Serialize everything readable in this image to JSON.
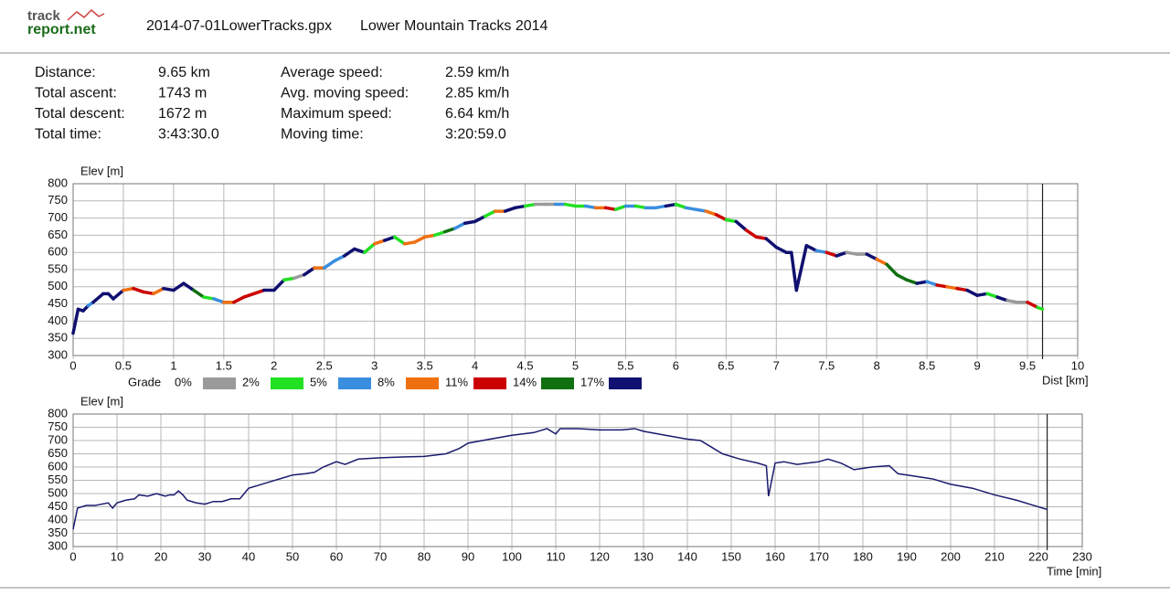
{
  "header": {
    "logo": [
      "track",
      "report.net"
    ],
    "file": "2014-07-01LowerTracks.gpx",
    "title": "Lower Mountain Tracks 2014"
  },
  "stats": [
    {
      "label": "Distance:",
      "value": "9.65 km"
    },
    {
      "label": "Total ascent:",
      "value": "1743 m"
    },
    {
      "label": "Total descent:",
      "value": "1672 m"
    },
    {
      "label": "Total time:",
      "value": "3:43:30.0"
    },
    {
      "label": "Average speed:",
      "value": "2.59 km/h"
    },
    {
      "label": "Avg. moving speed:",
      "value": "2.85 km/h"
    },
    {
      "label": "Maximum speed:",
      "value": "6.64 km/h"
    },
    {
      "label": "Moving time:",
      "value": "3:20:59.0"
    }
  ],
  "chart_data": [
    {
      "type": "line",
      "y_label": "Elev [m]",
      "x_label": "Dist [km]",
      "xlim": [
        0,
        10
      ],
      "xticks": [
        0,
        0.5,
        1,
        1.5,
        2,
        2.5,
        3,
        3.5,
        4,
        4.5,
        5,
        5.5,
        6,
        6.5,
        7,
        7.5,
        8,
        8.5,
        9,
        9.5,
        10
      ],
      "ylim": [
        300,
        800
      ],
      "yticks": [
        300,
        350,
        400,
        450,
        500,
        550,
        600,
        650,
        700,
        750,
        800
      ],
      "grid": true,
      "legend": {
        "title": "Grade",
        "items": [
          {
            "label": "0%",
            "color": "#9a9a9a"
          },
          {
            "label": "2%",
            "color": "#22e022"
          },
          {
            "label": "5%",
            "color": "#3a8ee0"
          },
          {
            "label": "8%",
            "color": "#f07010"
          },
          {
            "label": "11%",
            "color": "#cc0000"
          },
          {
            "label": "14%",
            "color": "#107010"
          },
          {
            "label": "17%",
            "color": "#101070"
          }
        ]
      },
      "series": [
        {
          "x": [
            0,
            0.05,
            0.1,
            0.15,
            0.2,
            0.3,
            0.35,
            0.4,
            0.5,
            0.6,
            0.7,
            0.8,
            0.9,
            1.0,
            1.1,
            1.2,
            1.3,
            1.4,
            1.5,
            1.6,
            1.7,
            1.8,
            1.9,
            2.0,
            2.1,
            2.2,
            2.3,
            2.4,
            2.5,
            2.6,
            2.7,
            2.8,
            2.9,
            3.0,
            3.1,
            3.2,
            3.3,
            3.4,
            3.5,
            3.6,
            3.7,
            3.8,
            3.9,
            4.0,
            4.1,
            4.2,
            4.3,
            4.4,
            4.5,
            4.6,
            4.7,
            4.8,
            4.9,
            5.0,
            5.1,
            5.2,
            5.3,
            5.4,
            5.5,
            5.6,
            5.7,
            5.8,
            5.9,
            6.0,
            6.1,
            6.2,
            6.3,
            6.4,
            6.5,
            6.6,
            6.7,
            6.8,
            6.9,
            7.0,
            7.1,
            7.15,
            7.2,
            7.3,
            7.4,
            7.5,
            7.6,
            7.7,
            7.8,
            7.9,
            8.0,
            8.1,
            8.2,
            8.3,
            8.4,
            8.5,
            8.6,
            8.7,
            8.8,
            8.9,
            9.0,
            9.1,
            9.2,
            9.3,
            9.4,
            9.5,
            9.6,
            9.65
          ],
          "values": [
            365,
            435,
            430,
            445,
            455,
            480,
            480,
            465,
            490,
            495,
            485,
            480,
            495,
            490,
            510,
            490,
            470,
            465,
            455,
            455,
            470,
            480,
            490,
            490,
            520,
            525,
            535,
            555,
            555,
            575,
            590,
            610,
            600,
            625,
            635,
            645,
            625,
            630,
            645,
            650,
            660,
            670,
            685,
            690,
            705,
            720,
            720,
            730,
            735,
            740,
            740,
            740,
            740,
            735,
            735,
            730,
            730,
            725,
            735,
            735,
            730,
            730,
            735,
            740,
            730,
            725,
            720,
            710,
            695,
            690,
            665,
            645,
            640,
            615,
            600,
            600,
            490,
            620,
            605,
            600,
            590,
            600,
            595,
            595,
            580,
            565,
            535,
            520,
            510,
            515,
            505,
            500,
            495,
            490,
            475,
            480,
            470,
            460,
            455,
            455,
            440,
            435
          ],
          "colors": [
            "#101070",
            "#101070",
            "#101070",
            "#101070",
            "#3a8ee0",
            "#101070",
            "#101070",
            "#101070",
            "#101070",
            "#f07010",
            "#cc0000",
            "#cc0000",
            "#f07010",
            "#101070",
            "#101070",
            "#101070",
            "#107010",
            "#22e022",
            "#3a8ee0",
            "#f07010",
            "#cc0000",
            "#cc0000",
            "#cc0000",
            "#101070",
            "#101070",
            "#22e022",
            "#9a9a9a",
            "#101070",
            "#f07010",
            "#3a8ee0",
            "#3a8ee0",
            "#101070",
            "#101070",
            "#22e022",
            "#f07010",
            "#101070",
            "#22e022",
            "#f07010",
            "#f07010",
            "#f07010",
            "#22e022",
            "#107010",
            "#3a8ee0",
            "#101070",
            "#101070",
            "#22e022",
            "#f07010",
            "#101070",
            "#101070",
            "#22e022",
            "#9a9a9a",
            "#9a9a9a",
            "#3a8ee0",
            "#22e022",
            "#22e022",
            "#3a8ee0",
            "#f07010",
            "#cc0000",
            "#22e022",
            "#3a8ee0",
            "#22e022",
            "#3a8ee0",
            "#3a8ee0",
            "#101070",
            "#22e022",
            "#3a8ee0",
            "#3a8ee0",
            "#f07010",
            "#cc0000",
            "#22e022",
            "#101070",
            "#cc0000",
            "#cc0000",
            "#101070",
            "#101070",
            "#101070",
            "#101070",
            "#101070",
            "#101070",
            "#3a8ee0",
            "#cc0000",
            "#101070",
            "#9a9a9a",
            "#9a9a9a",
            "#101070",
            "#f07010",
            "#107010",
            "#107010",
            "#107010",
            "#101070",
            "#3a8ee0",
            "#cc0000",
            "#f07010",
            "#cc0000",
            "#101070",
            "#101070",
            "#22e022",
            "#101070",
            "#9a9a9a",
            "#9a9a9a",
            "#cc0000",
            "#22e022"
          ]
        }
      ]
    },
    {
      "type": "line",
      "y_label": "Elev [m]",
      "x_label": "Time [min]",
      "xlim": [
        0,
        230
      ],
      "xticks": [
        0,
        10,
        20,
        30,
        40,
        50,
        60,
        70,
        80,
        90,
        100,
        110,
        120,
        130,
        140,
        150,
        160,
        170,
        180,
        190,
        200,
        210,
        220,
        230
      ],
      "ylim": [
        300,
        800
      ],
      "yticks": [
        300,
        350,
        400,
        450,
        500,
        550,
        600,
        650,
        700,
        750,
        800
      ],
      "grid": true,
      "series": [
        {
          "color": "#1a1a6e",
          "x": [
            0,
            1,
            3,
            5,
            8,
            9,
            10,
            12,
            14,
            15,
            17,
            19,
            21,
            22,
            23,
            24,
            25,
            26,
            28,
            30,
            32,
            34,
            36,
            38,
            39,
            40,
            42,
            45,
            48,
            50,
            53,
            55,
            57,
            60,
            62,
            65,
            70,
            75,
            80,
            85,
            88,
            90,
            95,
            100,
            105,
            108,
            110,
            111,
            115,
            120,
            125,
            128,
            130,
            135,
            140,
            143,
            145,
            148,
            152,
            156,
            158,
            158.5,
            160,
            162,
            165,
            170,
            172,
            175,
            178,
            182,
            186,
            188,
            192,
            196,
            200,
            205,
            210,
            215,
            219,
            222
          ],
          "values": [
            365,
            445,
            455,
            455,
            465,
            445,
            465,
            475,
            480,
            495,
            490,
            500,
            490,
            495,
            495,
            510,
            495,
            475,
            465,
            460,
            470,
            470,
            480,
            480,
            500,
            520,
            530,
            545,
            560,
            570,
            575,
            580,
            600,
            620,
            610,
            630,
            635,
            638,
            640,
            650,
            670,
            690,
            705,
            720,
            730,
            745,
            725,
            745,
            745,
            740,
            740,
            745,
            735,
            720,
            705,
            700,
            680,
            650,
            630,
            615,
            605,
            490,
            615,
            620,
            610,
            620,
            630,
            615,
            590,
            600,
            605,
            575,
            565,
            555,
            535,
            520,
            495,
            475,
            455,
            440
          ]
        }
      ]
    }
  ]
}
